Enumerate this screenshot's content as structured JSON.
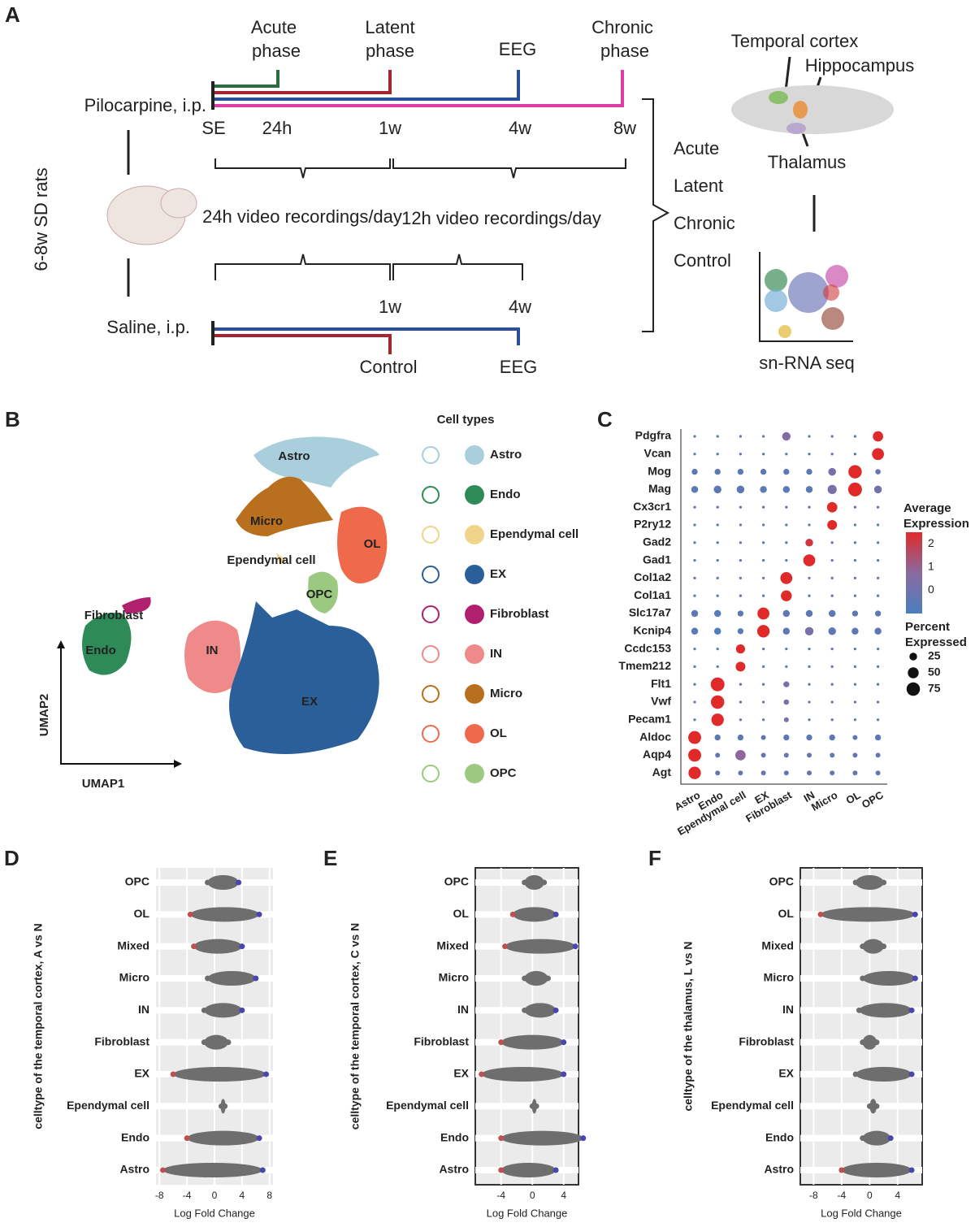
{
  "panel_a": {
    "label": "A",
    "timeline_top": {
      "phases": [
        [
          "Acute",
          "phase"
        ],
        [
          "Latent",
          "phase"
        ],
        [
          "EEG"
        ],
        [
          "Chronic",
          "phase"
        ]
      ],
      "treatment": "Pilocarpine, i.p.",
      "times": [
        "SE",
        "24h",
        "1w",
        "4w",
        "8w"
      ]
    },
    "recordings": [
      "24h video recordings/day",
      "12h video recordings/day"
    ],
    "animal": "6-8w SD rats",
    "timeline_bottom": {
      "treatment": "Saline, i.p.",
      "times": [
        "1w",
        "4w"
      ],
      "endpoints": [
        "Control",
        "EEG"
      ]
    },
    "groups": [
      "Acute",
      "Latent",
      "Chronic",
      "Control"
    ],
    "regions": [
      "Temporal cortex",
      "Hippocampus",
      "Thalamus"
    ],
    "method": "sn-RNA seq"
  },
  "panel_b": {
    "label": "B",
    "clusters": [
      "Astro",
      "Micro",
      "Ependymal cell",
      "OL",
      "OPC",
      "Fibroblast",
      "Endo",
      "IN",
      "EX"
    ],
    "x_label": "UMAP1",
    "y_label": "UMAP2",
    "legend_title": "Cell types",
    "legend": [
      {
        "name": "Astro",
        "color": "#a9cfdc"
      },
      {
        "name": "Endo",
        "color": "#2e8b57"
      },
      {
        "name": "Ependymal cell",
        "color": "#f0d48a"
      },
      {
        "name": "EX",
        "color": "#2b5f99"
      },
      {
        "name": "Fibroblast",
        "color": "#b0206e"
      },
      {
        "name": "IN",
        "color": "#f08a8a"
      },
      {
        "name": "Micro",
        "color": "#b8701e"
      },
      {
        "name": "OL",
        "color": "#ee6a4a"
      },
      {
        "name": "OPC",
        "color": "#9bc97f"
      }
    ]
  },
  "chart_data": [
    {
      "type": "dot",
      "label": "C",
      "genes": [
        "Pdgfra",
        "Vcan",
        "Mog",
        "Mag",
        "Cx3cr1",
        "P2ry12",
        "Gad2",
        "Gad1",
        "Col1a2",
        "Col1a1",
        "Slc17a7",
        "Kcnip4",
        "Ccdc153",
        "Tmem212",
        "Flt1",
        "Vwf",
        "Pecam1",
        "Aldoc",
        "Aqp4",
        "Agt"
      ],
      "categories": [
        "Astro",
        "Endo",
        "Ependymal cell",
        "EX",
        "Fibroblast",
        "IN",
        "Micro",
        "OL",
        "OPC"
      ],
      "expression": [
        [
          -0.3,
          -0.3,
          -0.3,
          -0.3,
          0.5,
          -0.3,
          -0.3,
          -0.3,
          2.5
        ],
        [
          -0.3,
          -0.3,
          -0.3,
          -0.3,
          -0.3,
          -0.3,
          -0.3,
          -0.3,
          2.5
        ],
        [
          -0.5,
          -0.5,
          -0.5,
          -0.5,
          -0.5,
          -0.5,
          0.3,
          2.5,
          -0.3
        ],
        [
          -0.5,
          -0.5,
          -0.5,
          -0.5,
          -0.5,
          -0.5,
          0.3,
          2.5,
          0
        ],
        [
          -0.3,
          -0.3,
          -0.3,
          -0.3,
          -0.3,
          -0.3,
          2.5,
          -0.3,
          -0.3
        ],
        [
          -0.3,
          -0.3,
          -0.3,
          -0.3,
          -0.3,
          -0.3,
          2.5,
          -0.3,
          -0.3
        ],
        [
          -0.3,
          -0.3,
          -0.3,
          -0.3,
          -0.3,
          2.2,
          -0.3,
          -0.3,
          -0.3
        ],
        [
          -0.3,
          -0.3,
          -0.3,
          -0.3,
          -0.3,
          2.5,
          -0.3,
          -0.3,
          -0.3
        ],
        [
          -0.3,
          -0.3,
          -0.3,
          -0.3,
          2.5,
          -0.3,
          -0.3,
          -0.3,
          -0.3
        ],
        [
          -0.3,
          -0.3,
          -0.3,
          -0.3,
          2.5,
          -0.3,
          -0.3,
          -0.3,
          -0.3
        ],
        [
          -0.5,
          -0.7,
          -0.5,
          2.5,
          -0.5,
          -0.5,
          -0.5,
          -0.5,
          -0.5
        ],
        [
          -0.6,
          -0.9,
          -0.6,
          2.5,
          -0.5,
          0.3,
          -0.5,
          -0.5,
          -0.5
        ],
        [
          -0.3,
          -0.3,
          2.5,
          -0.3,
          -0.3,
          -0.3,
          -0.3,
          -0.3,
          -0.3
        ],
        [
          -0.3,
          -0.3,
          2.5,
          -0.3,
          -0.3,
          -0.3,
          -0.3,
          -0.3,
          -0.3
        ],
        [
          -0.3,
          2.5,
          -0.3,
          -0.3,
          0.3,
          -0.3,
          -0.3,
          -0.3,
          -0.3
        ],
        [
          -0.3,
          2.5,
          -0.3,
          -0.3,
          0.3,
          -0.3,
          -0.3,
          -0.3,
          -0.3
        ],
        [
          -0.3,
          2.5,
          -0.3,
          -0.3,
          0.3,
          -0.3,
          -0.3,
          -0.3,
          -0.3
        ],
        [
          2.5,
          -0.5,
          -0.5,
          -0.5,
          -0.5,
          -0.5,
          -0.5,
          -0.5,
          -0.5
        ],
        [
          2.5,
          -0.3,
          0.8,
          -0.3,
          -0.3,
          -0.3,
          -0.3,
          -0.3,
          -0.3
        ],
        [
          2.5,
          -0.3,
          -0.3,
          -0.3,
          -0.3,
          -0.3,
          -0.3,
          -0.3,
          -0.3
        ]
      ],
      "percent": [
        [
          3,
          3,
          3,
          3,
          30,
          3,
          3,
          3,
          45
        ],
        [
          3,
          3,
          3,
          3,
          3,
          3,
          3,
          3,
          60
        ],
        [
          15,
          15,
          15,
          15,
          15,
          15,
          25,
          75,
          12
        ],
        [
          20,
          25,
          25,
          20,
          20,
          20,
          35,
          80,
          25
        ],
        [
          3,
          3,
          3,
          3,
          3,
          3,
          45,
          3,
          3
        ],
        [
          3,
          3,
          3,
          3,
          3,
          3,
          40,
          3,
          3
        ],
        [
          3,
          3,
          3,
          3,
          3,
          25,
          3,
          3,
          3
        ],
        [
          3,
          3,
          3,
          3,
          3,
          60,
          3,
          3,
          3
        ],
        [
          3,
          3,
          3,
          3,
          60,
          3,
          3,
          3,
          3
        ],
        [
          3,
          3,
          3,
          3,
          50,
          3,
          3,
          3,
          3
        ],
        [
          20,
          20,
          15,
          60,
          20,
          20,
          20,
          15,
          15
        ],
        [
          20,
          20,
          15,
          65,
          20,
          30,
          25,
          20,
          20
        ],
        [
          3,
          3,
          35,
          3,
          3,
          3,
          3,
          3,
          3
        ],
        [
          3,
          3,
          40,
          3,
          3,
          3,
          3,
          3,
          3
        ],
        [
          3,
          80,
          3,
          3,
          15,
          3,
          3,
          3,
          3
        ],
        [
          3,
          75,
          3,
          3,
          12,
          3,
          3,
          3,
          3
        ],
        [
          3,
          65,
          3,
          3,
          10,
          3,
          3,
          3,
          3
        ],
        [
          70,
          15,
          15,
          10,
          15,
          15,
          15,
          10,
          15
        ],
        [
          70,
          10,
          45,
          10,
          10,
          10,
          10,
          10,
          10
        ],
        [
          65,
          10,
          10,
          10,
          10,
          10,
          10,
          10,
          10
        ]
      ],
      "color_title": [
        "Average",
        "Expression"
      ],
      "color_lim": [
        -1,
        2.5
      ],
      "color_ticks": [
        2,
        1,
        0
      ],
      "colors": [
        "#4a7fbf",
        "#8a6aa0",
        "#e02a2a"
      ],
      "size_title": [
        "Percent",
        "Expressed"
      ],
      "size_ticks": [
        25,
        50,
        75
      ]
    },
    {
      "type": "swarm",
      "label": "D",
      "y_label": "celltype of the temporal cortex, A vs N",
      "x_label": "Log Fold Change",
      "categories": [
        "OPC",
        "OL",
        "Mixed",
        "Micro",
        "IN",
        "Fibroblast",
        "EX",
        "Ependymal cell",
        "Endo",
        "Astro"
      ],
      "min": [
        -1,
        -3.5,
        -3,
        -1,
        -1.5,
        -1.5,
        -6,
        1,
        -4,
        -7.5
      ],
      "max": [
        3.5,
        6.5,
        4,
        6,
        4,
        2,
        7.5,
        1.5,
        6.5,
        7
      ],
      "xlim": [
        -8.5,
        8.5
      ],
      "xticks": [
        -8,
        -4,
        0,
        4,
        8
      ]
    },
    {
      "type": "swarm",
      "label": "E",
      "y_label": "celltype of the temporal cortex, C vs N",
      "x_label": "Log Fold Change",
      "categories": [
        "OPC",
        "OL",
        "Mixed",
        "Micro",
        "IN",
        "Fibroblast",
        "EX",
        "Ependymal cell",
        "Endo",
        "Astro"
      ],
      "min": [
        -1,
        -2.5,
        -3.5,
        -1,
        -1,
        -4,
        -6.5,
        0,
        -4,
        -4
      ],
      "max": [
        1.5,
        3,
        5.5,
        2,
        3,
        4,
        4,
        0.5,
        6.5,
        3
      ],
      "xlim": [
        -7.3,
        5.9
      ],
      "xticks": [
        -4,
        0,
        4
      ]
    },
    {
      "type": "swarm",
      "label": "F",
      "y_label": "celltype of the thalamus, L vs N",
      "x_label": "Log Fold Change",
      "categories": [
        "OPC",
        "OL",
        "Mixed",
        "Micro",
        "IN",
        "Fibroblast",
        "EX",
        "Ependymal cell",
        "Endo",
        "Astro"
      ],
      "min": [
        -2,
        -7,
        -1,
        -1,
        -1.5,
        -1,
        -2,
        0,
        -1,
        -4
      ],
      "max": [
        2,
        6.5,
        2,
        6.5,
        6,
        1,
        6,
        1,
        3,
        6
      ],
      "xlim": [
        -9.9,
        7.5
      ],
      "xticks": [
        -8,
        -4,
        0,
        4
      ]
    }
  ]
}
